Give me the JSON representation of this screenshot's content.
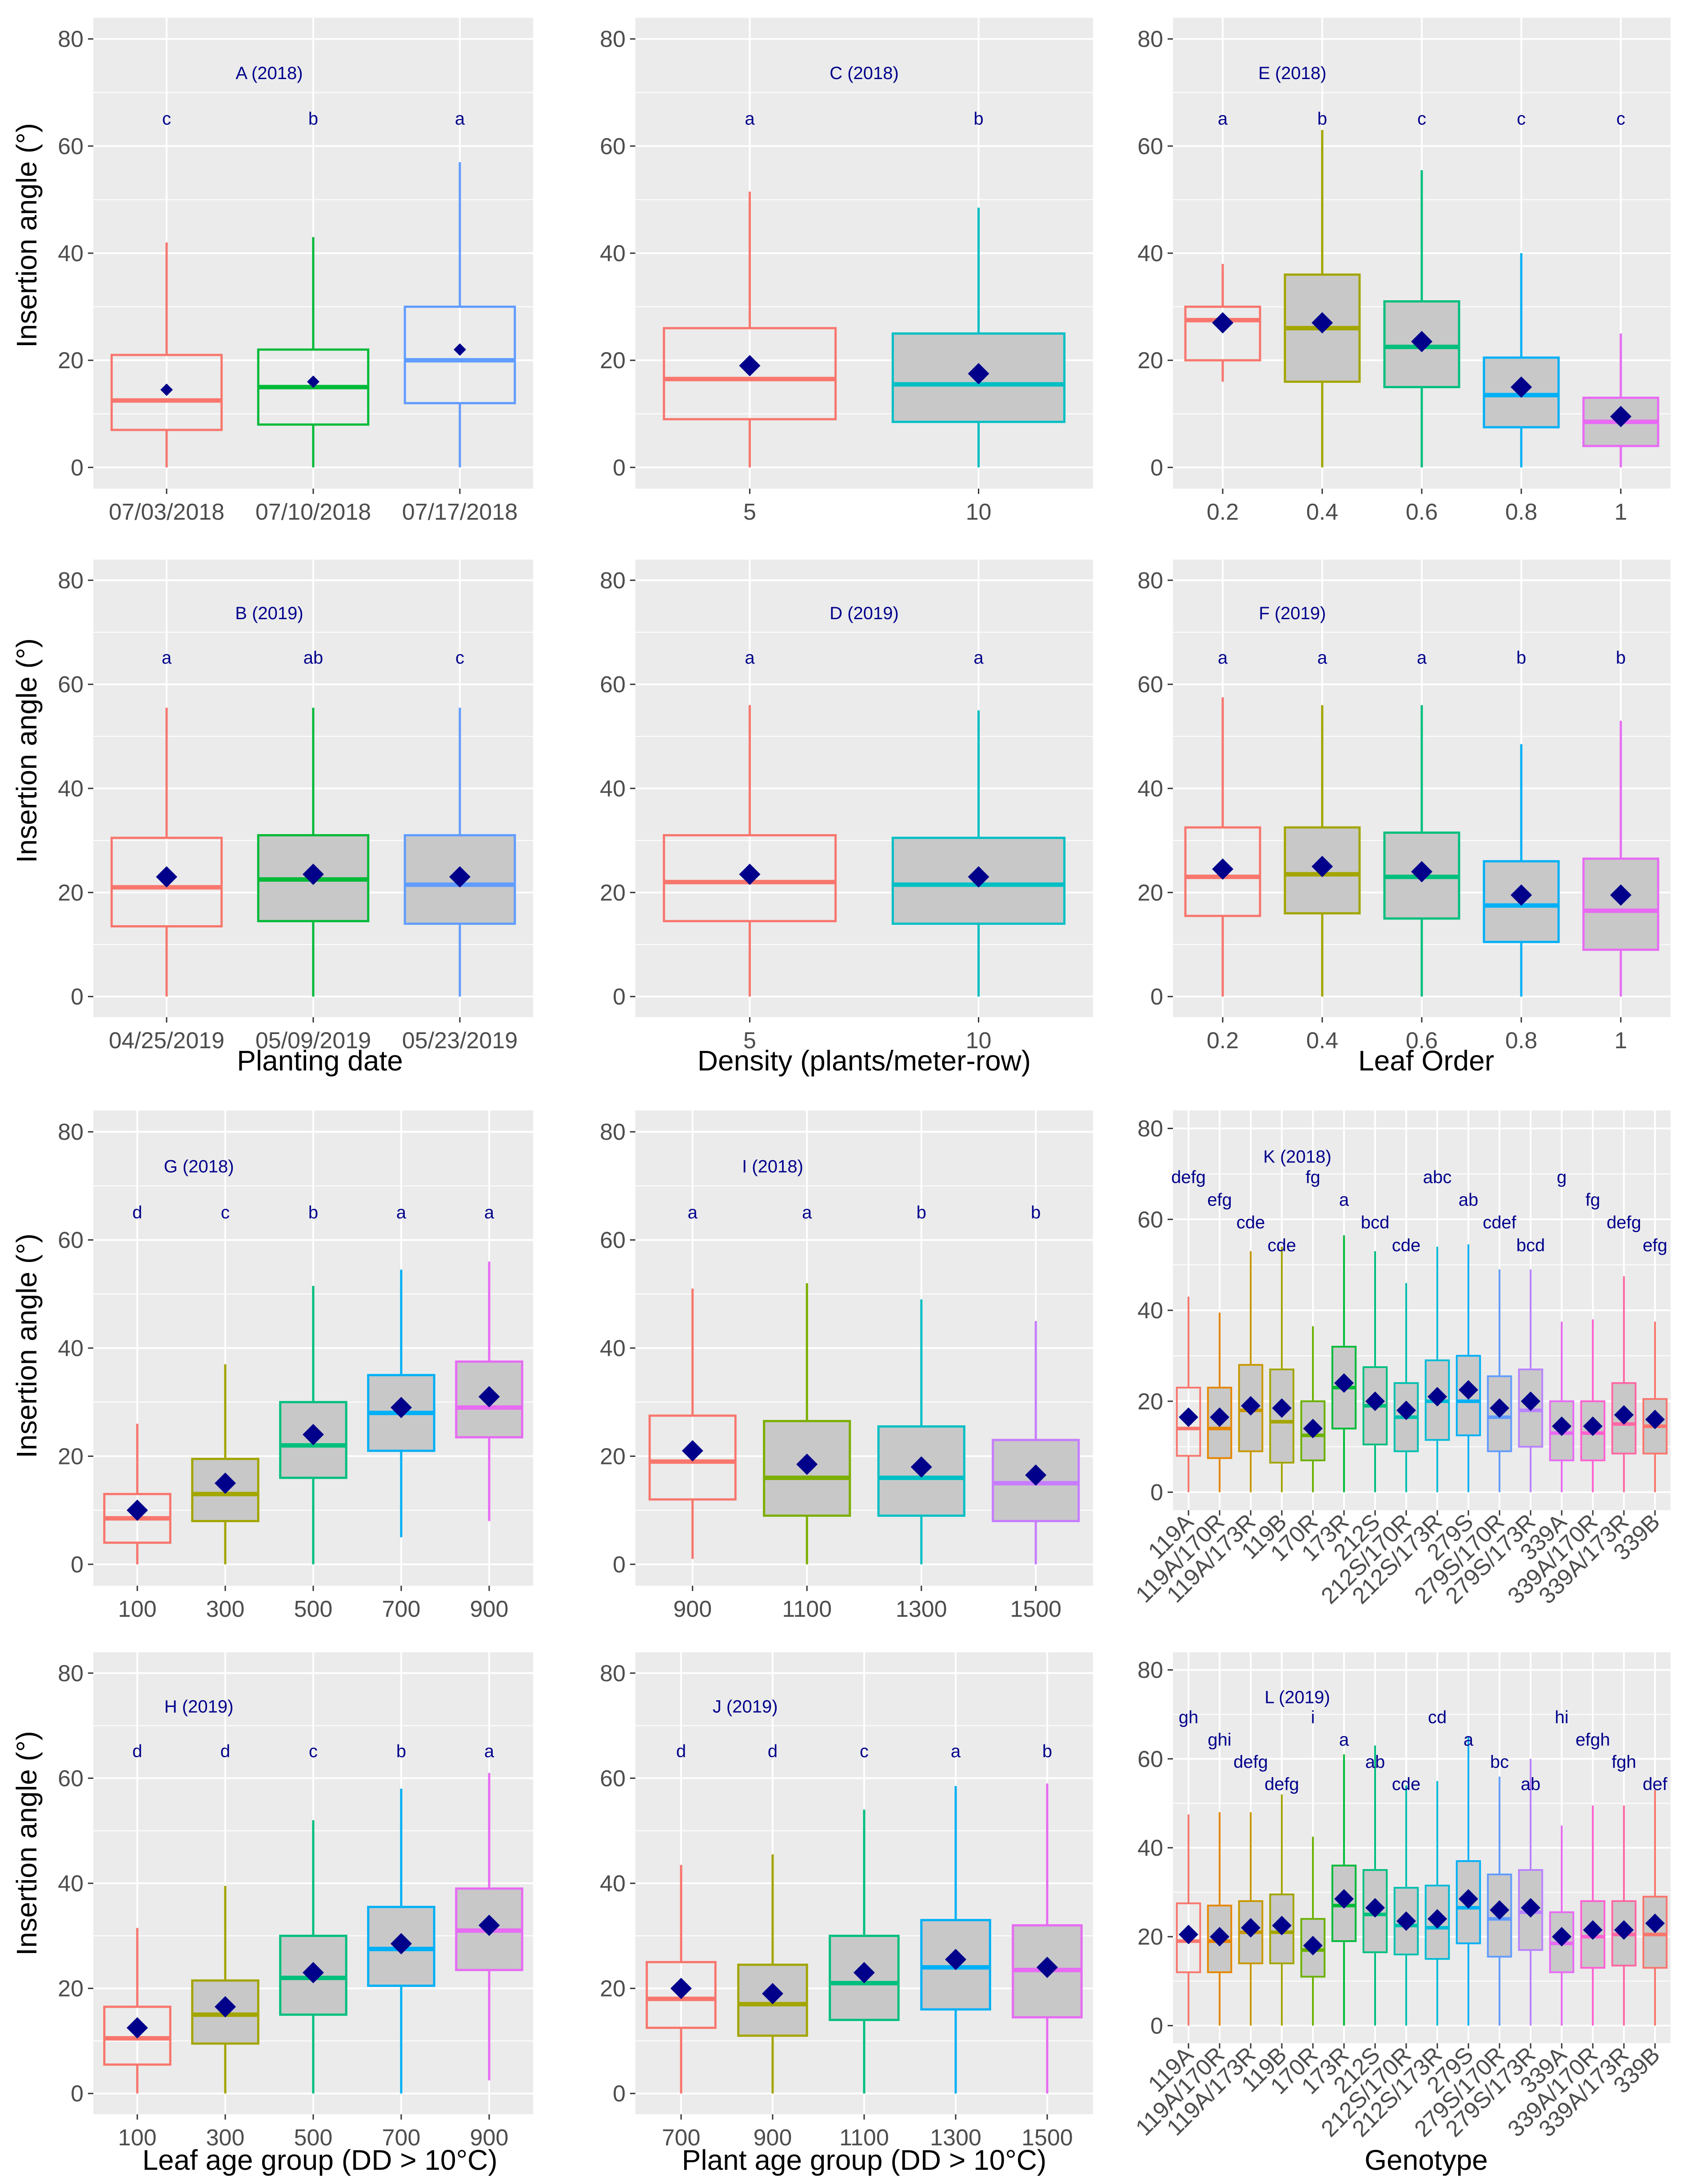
{
  "figure": {
    "y_axis_title": "Insertion angle (°)",
    "x_axis_titles": {
      "planting": "Planting date",
      "density": "Density (plants/meter-row)",
      "leaf_order": "Leaf Order",
      "leaf_age": "Leaf age group (DD > 10°C)",
      "plant_age": "Plant age group (DD > 10°C)",
      "genotype": "Genotype"
    }
  },
  "colors": {
    "panel_bg": "#ebebeb",
    "grid": "#ffffff",
    "box_fill": "#c8c8c8",
    "mean_marker": "#00008b",
    "letters": "#00008b"
  },
  "chart_data": [
    {
      "id": "A",
      "type": "box",
      "title": "A (2018)",
      "ylim": [
        0,
        80
      ],
      "yticks": [
        0,
        20,
        40,
        60,
        80
      ],
      "categories": [
        "07/03/2018",
        "07/10/2018",
        "07/17/2018"
      ],
      "colors": [
        "#F8766D",
        "#00BA38",
        "#619CFF"
      ],
      "fill": "none",
      "boxes": [
        {
          "min": 0,
          "q1": 7,
          "median": 12.5,
          "q3": 21,
          "max": 42,
          "mean": 14.5
        },
        {
          "min": 0,
          "q1": 8,
          "median": 15,
          "q3": 22,
          "max": 43,
          "mean": 16
        },
        {
          "min": 0,
          "q1": 12,
          "median": 20,
          "q3": 30,
          "max": 57,
          "mean": 22
        }
      ],
      "letters": [
        "c",
        "b",
        "a"
      ],
      "marker": "small"
    },
    {
      "id": "C",
      "type": "box",
      "title": "C (2018)",
      "ylim": [
        0,
        80
      ],
      "yticks": [
        0,
        20,
        40,
        60,
        80
      ],
      "categories": [
        "5",
        "10"
      ],
      "colors": [
        "#F8766D",
        "#00BFC4"
      ],
      "fill": "second",
      "boxes": [
        {
          "min": 0,
          "q1": 9,
          "median": 16.5,
          "q3": 26,
          "max": 51.5,
          "mean": 19
        },
        {
          "min": 0,
          "q1": 8.5,
          "median": 15.5,
          "q3": 25,
          "max": 48.5,
          "mean": 17.5
        }
      ],
      "letters": [
        "a",
        "b"
      ]
    },
    {
      "id": "E",
      "type": "box",
      "title": "E (2018)",
      "ylim": [
        0,
        80
      ],
      "yticks": [
        0,
        20,
        40,
        60,
        80
      ],
      "categories": [
        "0.2",
        "0.4",
        "0.6",
        "0.8",
        "1"
      ],
      "colors": [
        "#F8766D",
        "#A3A500",
        "#00BF7D",
        "#00B0F6",
        "#E76BF3"
      ],
      "fill": "all_but_first",
      "boxes": [
        {
          "min": 16,
          "q1": 20,
          "median": 27.5,
          "q3": 30,
          "max": 38,
          "mean": 27
        },
        {
          "min": 0,
          "q1": 16,
          "median": 26,
          "q3": 36,
          "max": 63,
          "mean": 27
        },
        {
          "min": 0,
          "q1": 15,
          "median": 22.5,
          "q3": 31,
          "max": 55.5,
          "mean": 23.5
        },
        {
          "min": 0,
          "q1": 7.5,
          "median": 13.5,
          "q3": 20.5,
          "max": 40,
          "mean": 15
        },
        {
          "min": 0,
          "q1": 4,
          "median": 8.5,
          "q3": 13,
          "max": 25,
          "mean": 9.5
        }
      ],
      "letters": [
        "a",
        "b",
        "c",
        "c",
        "c"
      ]
    },
    {
      "id": "B",
      "type": "box",
      "title": "B (2019)",
      "ylim": [
        0,
        80
      ],
      "yticks": [
        0,
        20,
        40,
        60,
        80
      ],
      "categories": [
        "04/25/2019",
        "05/09/2019",
        "05/23/2019"
      ],
      "colors": [
        "#F8766D",
        "#00BA38",
        "#619CFF"
      ],
      "fill": "all_but_first",
      "boxes": [
        {
          "min": 0,
          "q1": 13.5,
          "median": 21,
          "q3": 30.5,
          "max": 55.5,
          "mean": 23
        },
        {
          "min": 0,
          "q1": 14.5,
          "median": 22.5,
          "q3": 31,
          "max": 55.5,
          "mean": 23.5
        },
        {
          "min": 0,
          "q1": 14,
          "median": 21.5,
          "q3": 31,
          "max": 55.5,
          "mean": 23
        }
      ],
      "letters": [
        "a",
        "ab",
        "c"
      ]
    },
    {
      "id": "D",
      "type": "box",
      "title": "D (2019)",
      "ylim": [
        0,
        80
      ],
      "yticks": [
        0,
        20,
        40,
        60,
        80
      ],
      "categories": [
        "5",
        "10"
      ],
      "colors": [
        "#F8766D",
        "#00BFC4"
      ],
      "fill": "second",
      "boxes": [
        {
          "min": 0,
          "q1": 14.5,
          "median": 22,
          "q3": 31,
          "max": 56,
          "mean": 23.5
        },
        {
          "min": 0,
          "q1": 14,
          "median": 21.5,
          "q3": 30.5,
          "max": 55,
          "mean": 23
        }
      ],
      "letters": [
        "a",
        "a"
      ]
    },
    {
      "id": "F",
      "type": "box",
      "title": "F (2019)",
      "ylim": [
        0,
        80
      ],
      "yticks": [
        0,
        20,
        40,
        60,
        80
      ],
      "categories": [
        "0.2",
        "0.4",
        "0.6",
        "0.8",
        "1"
      ],
      "colors": [
        "#F8766D",
        "#A3A500",
        "#00BF7D",
        "#00B0F6",
        "#E76BF3"
      ],
      "fill": "all_but_first",
      "boxes": [
        {
          "min": 0,
          "q1": 15.5,
          "median": 23,
          "q3": 32.5,
          "max": 57.5,
          "mean": 24.5
        },
        {
          "min": 0,
          "q1": 16,
          "median": 23.5,
          "q3": 32.5,
          "max": 56,
          "mean": 25
        },
        {
          "min": 0,
          "q1": 15,
          "median": 23,
          "q3": 31.5,
          "max": 56,
          "mean": 24
        },
        {
          "min": 0,
          "q1": 10.5,
          "median": 17.5,
          "q3": 26,
          "max": 48.5,
          "mean": 19.5
        },
        {
          "min": 0,
          "q1": 9,
          "median": 16.5,
          "q3": 26.5,
          "max": 53,
          "mean": 19.5
        }
      ],
      "letters": [
        "a",
        "a",
        "a",
        "b",
        "b"
      ]
    },
    {
      "id": "G",
      "type": "box",
      "title": "G (2018)",
      "ylim": [
        0,
        80
      ],
      "yticks": [
        0,
        20,
        40,
        60,
        80
      ],
      "categories": [
        "100",
        "300",
        "500",
        "700",
        "900"
      ],
      "colors": [
        "#F8766D",
        "#A3A500",
        "#00BF7D",
        "#00B0F6",
        "#E76BF3"
      ],
      "fill": "all_but_first",
      "boxes": [
        {
          "min": 0,
          "q1": 4,
          "median": 8.5,
          "q3": 13,
          "max": 26,
          "mean": 10
        },
        {
          "min": 0,
          "q1": 8,
          "median": 13,
          "q3": 19.5,
          "max": 37,
          "mean": 15
        },
        {
          "min": 0,
          "q1": 16,
          "median": 22,
          "q3": 30,
          "max": 51.5,
          "mean": 24
        },
        {
          "min": 5,
          "q1": 21,
          "median": 28,
          "q3": 35,
          "max": 54.5,
          "mean": 29
        },
        {
          "min": 8,
          "q1": 23.5,
          "median": 29,
          "q3": 37.5,
          "max": 56,
          "mean": 31
        }
      ],
      "letters": [
        "d",
        "c",
        "b",
        "a",
        "a"
      ]
    },
    {
      "id": "I",
      "type": "box",
      "title": "I (2018)",
      "ylim": [
        0,
        80
      ],
      "yticks": [
        0,
        20,
        40,
        60,
        80
      ],
      "categories": [
        "900",
        "1100",
        "1300",
        "1500"
      ],
      "colors": [
        "#F8766D",
        "#7CAE00",
        "#00BFC4",
        "#C77CFF"
      ],
      "fill": "all_but_first",
      "boxes": [
        {
          "min": 1,
          "q1": 12,
          "median": 19,
          "q3": 27.5,
          "max": 51,
          "mean": 21
        },
        {
          "min": 0,
          "q1": 9,
          "median": 16,
          "q3": 26.5,
          "max": 52,
          "mean": 18.5
        },
        {
          "min": 0,
          "q1": 9,
          "median": 16,
          "q3": 25.5,
          "max": 49,
          "mean": 18
        },
        {
          "min": 0,
          "q1": 8,
          "median": 15,
          "q3": 23,
          "max": 45,
          "mean": 16.5
        }
      ],
      "letters": [
        "a",
        "a",
        "b",
        "b"
      ]
    },
    {
      "id": "K",
      "type": "box",
      "title": "K (2018)",
      "ylim": [
        0,
        80
      ],
      "yticks": [
        0,
        20,
        40,
        60,
        80
      ],
      "categories": [
        "119A",
        "119A/170R",
        "119A/173R",
        "119B",
        "170R",
        "173R",
        "212S",
        "212S/170R",
        "212S/173R",
        "279S",
        "279S/170R",
        "279S/173R",
        "339A",
        "339A/170R",
        "339A/173R",
        "339B"
      ],
      "colors": [
        "#F8766D",
        "#E58700",
        "#C99800",
        "#A3A500",
        "#6BB100",
        "#00BA38",
        "#00BF7D",
        "#00C0AF",
        "#00BCD8",
        "#00B0F6",
        "#619CFF",
        "#B983FF",
        "#E76BF3",
        "#FD61D1",
        "#FF67A4",
        "#F8766D"
      ],
      "fill": "all_but_first",
      "boxes": [
        {
          "min": 0,
          "q1": 8,
          "median": 14,
          "q3": 23,
          "max": 43,
          "mean": 16.5
        },
        {
          "min": 0,
          "q1": 7.5,
          "median": 14,
          "q3": 23,
          "max": 39.5,
          "mean": 16.5
        },
        {
          "min": 0,
          "q1": 9,
          "median": 18,
          "q3": 28,
          "max": 53,
          "mean": 19
        },
        {
          "min": 0,
          "q1": 6.5,
          "median": 15.5,
          "q3": 27,
          "max": 54,
          "mean": 18.5
        },
        {
          "min": 0,
          "q1": 7,
          "median": 12.5,
          "q3": 20,
          "max": 36.5,
          "mean": 14
        },
        {
          "min": 0,
          "q1": 14,
          "median": 23,
          "q3": 32,
          "max": 56.5,
          "mean": 24
        },
        {
          "min": 0,
          "q1": 10.5,
          "median": 19,
          "q3": 27.5,
          "max": 53,
          "mean": 20
        },
        {
          "min": 0,
          "q1": 9,
          "median": 16.5,
          "q3": 24,
          "max": 46,
          "mean": 18
        },
        {
          "min": 0,
          "q1": 11.5,
          "median": 20,
          "q3": 29,
          "max": 54,
          "mean": 21
        },
        {
          "min": 0,
          "q1": 12.5,
          "median": 20,
          "q3": 30,
          "max": 54.5,
          "mean": 22.5
        },
        {
          "min": 0,
          "q1": 9,
          "median": 16.5,
          "q3": 25.5,
          "max": 49,
          "mean": 18.5
        },
        {
          "min": 0,
          "q1": 10,
          "median": 18,
          "q3": 27,
          "max": 49,
          "mean": 20
        },
        {
          "min": 0,
          "q1": 7,
          "median": 13,
          "q3": 20,
          "max": 37.5,
          "mean": 14.5
        },
        {
          "min": 0,
          "q1": 7,
          "median": 13,
          "q3": 20,
          "max": 38,
          "mean": 14.5
        },
        {
          "min": 0,
          "q1": 8.5,
          "median": 15,
          "q3": 24,
          "max": 47.5,
          "mean": 17
        },
        {
          "min": 0,
          "q1": 8.5,
          "median": 14.5,
          "q3": 20.5,
          "max": 37.5,
          "mean": 16
        }
      ],
      "letters": [
        "defg",
        "efg",
        "cde",
        "cde",
        "fg",
        "a",
        "bcd",
        "cde",
        "abc",
        "ab",
        "cdef",
        "bcd",
        "g",
        "fg",
        "defg",
        "efg"
      ]
    },
    {
      "id": "H",
      "type": "box",
      "title": "H (2019)",
      "ylim": [
        0,
        80
      ],
      "yticks": [
        0,
        20,
        40,
        60,
        80
      ],
      "categories": [
        "100",
        "300",
        "500",
        "700",
        "900"
      ],
      "colors": [
        "#F8766D",
        "#A3A500",
        "#00BF7D",
        "#00B0F6",
        "#E76BF3"
      ],
      "fill": "all_but_first",
      "boxes": [
        {
          "min": 0,
          "q1": 5.5,
          "median": 10.5,
          "q3": 16.5,
          "max": 31.5,
          "mean": 12.5
        },
        {
          "min": 0,
          "q1": 9.5,
          "median": 15,
          "q3": 21.5,
          "max": 39.5,
          "mean": 16.5
        },
        {
          "min": 0,
          "q1": 15,
          "median": 22,
          "q3": 30,
          "max": 52,
          "mean": 23
        },
        {
          "min": 0,
          "q1": 20.5,
          "median": 27.5,
          "q3": 35.5,
          "max": 58,
          "mean": 28.5
        },
        {
          "min": 2.5,
          "q1": 23.5,
          "median": 31,
          "q3": 39,
          "max": 61,
          "mean": 32
        }
      ],
      "letters": [
        "d",
        "d",
        "c",
        "b",
        "a"
      ]
    },
    {
      "id": "J",
      "type": "box",
      "title": "J (2019)",
      "ylim": [
        0,
        80
      ],
      "yticks": [
        0,
        20,
        40,
        60,
        80
      ],
      "categories": [
        "700",
        "900",
        "1100",
        "1300",
        "1500"
      ],
      "colors": [
        "#F8766D",
        "#A3A500",
        "#00BF7D",
        "#00B0F6",
        "#E76BF3"
      ],
      "fill": "all_but_first",
      "boxes": [
        {
          "min": 0,
          "q1": 12.5,
          "median": 18,
          "q3": 25,
          "max": 43.5,
          "mean": 20
        },
        {
          "min": 0,
          "q1": 11,
          "median": 17,
          "q3": 24.5,
          "max": 45.5,
          "mean": 19
        },
        {
          "min": 0,
          "q1": 14,
          "median": 21,
          "q3": 30,
          "max": 54,
          "mean": 23
        },
        {
          "min": 0,
          "q1": 16,
          "median": 24,
          "q3": 33,
          "max": 58.5,
          "mean": 25.5
        },
        {
          "min": 0,
          "q1": 14.5,
          "median": 23.5,
          "q3": 32,
          "max": 59,
          "mean": 24
        }
      ],
      "letters": [
        "d",
        "d",
        "c",
        "a",
        "b"
      ]
    },
    {
      "id": "L",
      "type": "box",
      "title": "L (2019)",
      "ylim": [
        0,
        80
      ],
      "yticks": [
        0,
        20,
        40,
        60,
        80
      ],
      "categories": [
        "119A",
        "119A/170R",
        "119A/173R",
        "119B",
        "170R",
        "173R",
        "212S",
        "212S/170R",
        "212S/173R",
        "279S",
        "279S/170R",
        "279S/173R",
        "339A",
        "339A/170R",
        "339A/173R",
        "339B"
      ],
      "colors": [
        "#F8766D",
        "#E58700",
        "#C99800",
        "#A3A500",
        "#6BB100",
        "#00BA38",
        "#00BF7D",
        "#00C0AF",
        "#00BCD8",
        "#00B0F6",
        "#619CFF",
        "#B983FF",
        "#E76BF3",
        "#FD61D1",
        "#FF67A4",
        "#F8766D"
      ],
      "fill": "all_but_first",
      "boxes": [
        {
          "min": 0,
          "q1": 12,
          "median": 19,
          "q3": 27.5,
          "max": 47.5,
          "mean": 20.5
        },
        {
          "min": 0,
          "q1": 12,
          "median": 19,
          "q3": 27,
          "max": 48,
          "mean": 20
        },
        {
          "min": 0,
          "q1": 14,
          "median": 21,
          "q3": 28,
          "max": 48,
          "mean": 22
        },
        {
          "min": 0,
          "q1": 14,
          "median": 21,
          "q3": 29.5,
          "max": 52,
          "mean": 22.5
        },
        {
          "min": 0,
          "q1": 11,
          "median": 17,
          "q3": 24,
          "max": 42.5,
          "mean": 18
        },
        {
          "min": 0,
          "q1": 19,
          "median": 27,
          "q3": 36,
          "max": 61,
          "mean": 28.5
        },
        {
          "min": 0,
          "q1": 16.5,
          "median": 25,
          "q3": 35,
          "max": 63,
          "mean": 26.5
        },
        {
          "min": 0,
          "q1": 16,
          "median": 22.5,
          "q3": 31,
          "max": 54,
          "mean": 23.5
        },
        {
          "min": 0,
          "q1": 15,
          "median": 22,
          "q3": 31.5,
          "max": 55,
          "mean": 24
        },
        {
          "min": 0,
          "q1": 18.5,
          "median": 26.5,
          "q3": 37,
          "max": 65,
          "mean": 28.5
        },
        {
          "min": 0,
          "q1": 15.5,
          "median": 24,
          "q3": 34,
          "max": 56,
          "mean": 26
        },
        {
          "min": 0,
          "q1": 17,
          "median": 25.5,
          "q3": 35,
          "max": 60,
          "mean": 26.5
        },
        {
          "min": 0,
          "q1": 12,
          "median": 18.5,
          "q3": 25.5,
          "max": 45,
          "mean": 20
        },
        {
          "min": 0,
          "q1": 13,
          "median": 20,
          "q3": 28,
          "max": 49.5,
          "mean": 21.5
        },
        {
          "min": 0,
          "q1": 13.5,
          "median": 20.5,
          "q3": 28,
          "max": 49.5,
          "mean": 21.5
        },
        {
          "min": 0,
          "q1": 13,
          "median": 20.5,
          "q3": 29,
          "max": 53,
          "mean": 23
        }
      ],
      "letters": [
        "gh",
        "ghi",
        "defg",
        "defg",
        "i",
        "a",
        "ab",
        "cde",
        "cd",
        "a",
        "bc",
        "ab",
        "hi",
        "efgh",
        "fgh",
        "def"
      ]
    }
  ]
}
